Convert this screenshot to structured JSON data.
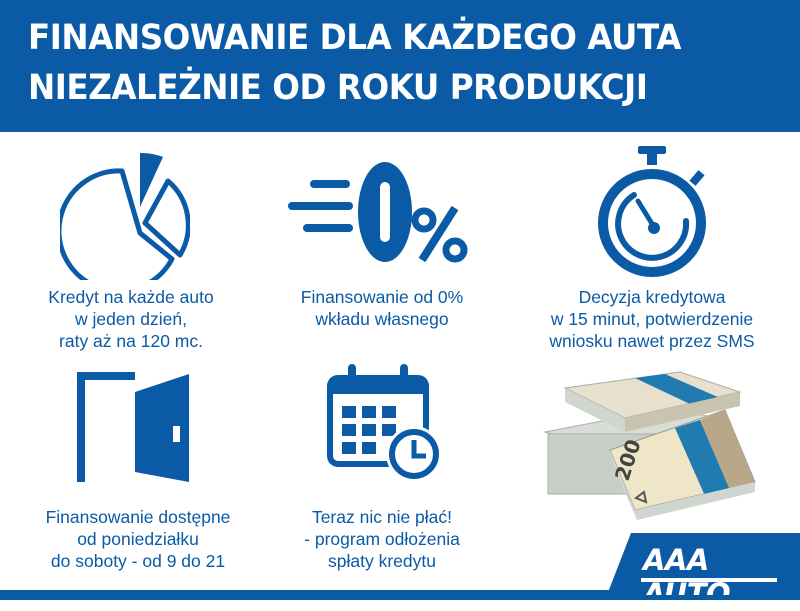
{
  "header": {
    "line1": "FINANSOWANIE DLA KAŻDEGO AUTA",
    "line2": "NIEZALEŻNIE OD ROKU PRODUKCJI"
  },
  "features": [
    {
      "icon": "pie-chart-icon",
      "text": "Kredyt na każde auto\nw jeden dzień,\nraty aż na 120 mc."
    },
    {
      "icon": "zero-percent-icon",
      "text": "Finansowanie od 0%\nwkładu własnego"
    },
    {
      "icon": "stopwatch-icon",
      "text": "Decyzja kredytowa\nw 15 minut, potwierdzenie\nwniosku nawet przez SMS"
    },
    {
      "icon": "open-door-icon",
      "text": "Finansowanie dostępne\nod poniedziałku\ndo soboty - od 9 do 21"
    },
    {
      "icon": "calendar-clock-icon",
      "text": "Teraz nic nie płać!\n- program odłożenia\nspłaty kredytu"
    }
  ],
  "banknote_denomination": "200",
  "brand": {
    "logo": "AAA AUTO",
    "color": "#0b5aa6"
  }
}
